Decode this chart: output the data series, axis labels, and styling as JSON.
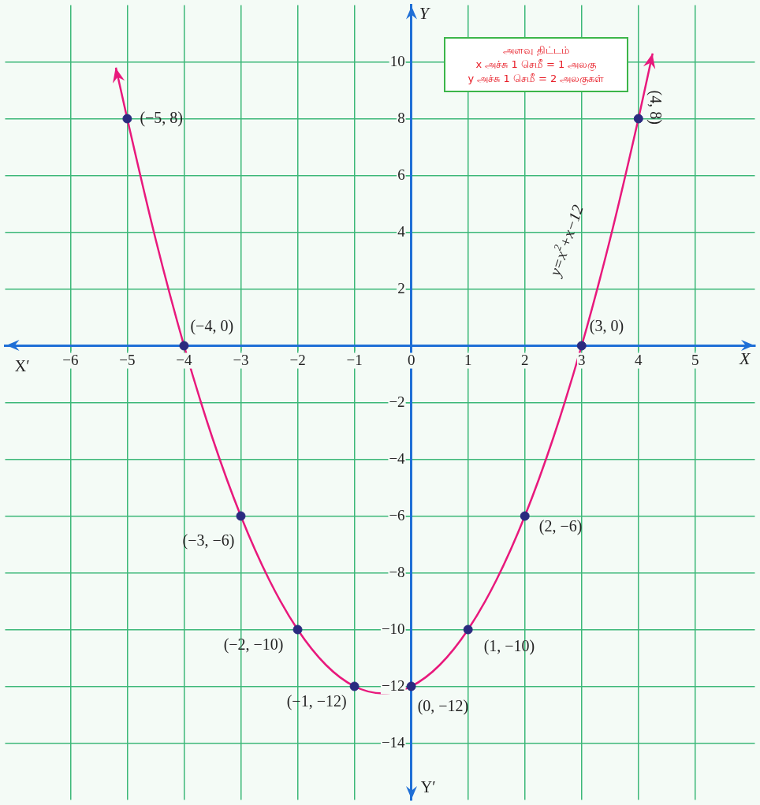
{
  "chart_data": {
    "type": "line",
    "xlabel": "X",
    "ylabel": "Y",
    "xlim": [
      -7.15,
      6.05
    ],
    "ylim": [
      -16,
      12
    ],
    "xticks": [
      {
        "value": -6,
        "label": "−6"
      },
      {
        "value": -5,
        "label": "−5"
      },
      {
        "value": -4,
        "label": "−4"
      },
      {
        "value": -3,
        "label": "−3"
      },
      {
        "value": -2,
        "label": "−2"
      },
      {
        "value": -1,
        "label": "−1"
      },
      0,
      1,
      2,
      3,
      4,
      5
    ],
    "yticks": [
      {
        "value": -14,
        "label": "−14"
      },
      {
        "value": -12,
        "label": "−12"
      },
      {
        "value": -10,
        "label": "−10"
      },
      {
        "value": -8,
        "label": "−8"
      },
      {
        "value": -6,
        "label": "−6"
      },
      {
        "value": -4,
        "label": "−4"
      },
      {
        "value": -2,
        "label": "−2"
      },
      2,
      4,
      6,
      8,
      10
    ],
    "grid": true,
    "legend": false,
    "series": [
      {
        "type": "line",
        "color": "#e8197c",
        "marker": "none",
        "x": [
          -5.2,
          -5,
          -4.5,
          -4,
          -3.5,
          -3,
          -2.5,
          -2,
          -1.5,
          -1,
          -0.5,
          0,
          0.5,
          1,
          1.5,
          2,
          2.5,
          3,
          3.5,
          4,
          4.25
        ],
        "values": [
          9.8,
          8,
          3.75,
          0,
          -3.25,
          -6,
          -8.25,
          -10,
          -11.25,
          -12,
          -12.25,
          -12,
          -11.25,
          -10,
          -8.25,
          -6,
          -3.25,
          0,
          3.75,
          8,
          10.3
        ]
      },
      {
        "type": "scatter",
        "color": "#2b2b80",
        "marker": "circle",
        "x": [
          -5,
          -4,
          -3,
          -2,
          -1,
          0,
          1,
          2,
          3,
          4
        ],
        "values": [
          8,
          0,
          -6,
          -10,
          -12,
          -12,
          -10,
          -6,
          0,
          8
        ]
      }
    ],
    "annotations": [
      {
        "text": "(−5, 8)",
        "x": -5,
        "y": 8
      },
      {
        "text": "(−4, 0)",
        "x": -4,
        "y": 0
      },
      {
        "text": "(−3, −6)",
        "x": -3,
        "y": -6
      },
      {
        "text": "(−2, −10)",
        "x": -2,
        "y": -10
      },
      {
        "text": "(−1, −12)",
        "x": -1,
        "y": -12
      },
      {
        "text": "(0, −12)",
        "x": 0,
        "y": -12
      },
      {
        "text": "(1, −10)",
        "x": 1,
        "y": -10
      },
      {
        "text": "(2, −6)",
        "x": 2,
        "y": -6
      },
      {
        "text": "(3, 0)",
        "x": 3,
        "y": 0
      },
      {
        "text": "(4, 8)",
        "x": 4,
        "y": 8
      },
      "y=x$^{2}$+x−12",
      "X′",
      "Y′",
      "அளவு திட்டம்",
      "x அச்சு 1 செமீ = 1 அலகு",
      "y அச்சு 1 செமீ = 2 அலகுகள்"
    ]
  }
}
